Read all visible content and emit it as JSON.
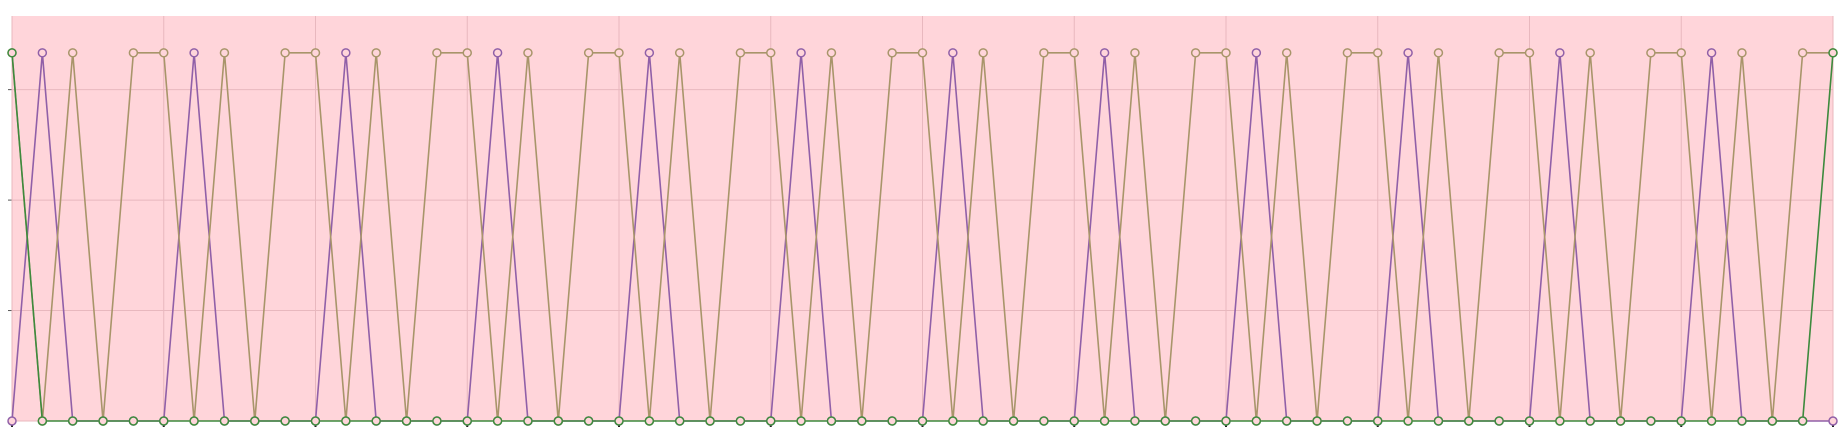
{
  "chart_data": {
    "type": "line",
    "x": [
      0,
      1,
      2,
      3,
      4,
      5,
      6,
      7,
      8,
      9,
      10,
      11,
      12,
      13,
      14,
      15,
      16,
      17,
      18,
      19,
      20,
      21,
      22,
      23,
      24,
      25,
      26,
      27,
      28,
      29,
      30,
      31,
      32,
      33,
      34,
      35,
      36,
      37,
      38,
      39,
      40,
      41,
      42,
      43,
      44,
      45,
      46,
      47,
      48,
      49,
      50,
      51,
      52,
      53,
      54,
      55,
      56,
      57,
      58,
      59,
      60
    ],
    "series": [
      {
        "color": "#9060a8",
        "values": [
          0,
          1,
          0,
          0,
          0,
          0,
          1,
          0,
          0,
          0,
          0,
          1,
          0,
          0,
          0,
          0,
          1,
          0,
          0,
          0,
          0,
          1,
          0,
          0,
          0,
          0,
          1,
          0,
          0,
          0,
          0,
          1,
          0,
          0,
          0,
          0,
          1,
          0,
          0,
          0,
          0,
          1,
          0,
          0,
          0,
          0,
          1,
          0,
          0,
          0,
          0,
          1,
          0,
          0,
          0,
          0,
          1,
          0,
          0,
          0,
          0
        ]
      },
      {
        "color": "#a8956a",
        "values": [
          1,
          0,
          1,
          0,
          1,
          1,
          0,
          1,
          0,
          1,
          1,
          0,
          1,
          0,
          1,
          1,
          0,
          1,
          0,
          1,
          1,
          0,
          1,
          0,
          1,
          1,
          0,
          1,
          0,
          1,
          1,
          0,
          1,
          0,
          1,
          1,
          0,
          1,
          0,
          1,
          1,
          0,
          1,
          0,
          1,
          1,
          0,
          1,
          0,
          1,
          1,
          0,
          1,
          0,
          1,
          1,
          0,
          1,
          0,
          1,
          1
        ]
      },
      {
        "color": "#3d8a3d",
        "values": [
          1,
          0,
          0,
          0,
          0,
          0,
          0,
          0,
          0,
          0,
          0,
          0,
          0,
          0,
          0,
          0,
          0,
          0,
          0,
          0,
          0,
          0,
          0,
          0,
          0,
          0,
          0,
          0,
          0,
          0,
          0,
          0,
          0,
          0,
          0,
          0,
          0,
          0,
          0,
          0,
          0,
          0,
          0,
          0,
          0,
          0,
          0,
          0,
          0,
          0,
          0,
          0,
          0,
          0,
          0,
          0,
          0,
          0,
          0,
          0,
          1
        ]
      }
    ],
    "xlim": [
      0,
      60
    ],
    "xticks": [
      0,
      5,
      10,
      15,
      20,
      25,
      30,
      35,
      40,
      45,
      50,
      55,
      60
    ],
    "ylim": [
      0,
      1.1
    ],
    "yticks": [
      0,
      0.3,
      0.6,
      0.9
    ],
    "grid": true,
    "background": "#ffd5da"
  }
}
